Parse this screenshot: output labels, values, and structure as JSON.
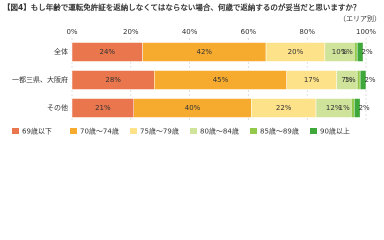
{
  "chart_data": {
    "type": "stacked-bar-horizontal",
    "title": "【図4】もし年齢で運転免許証を返納しなくてはならない場合、何歳で返納するのが妥当だと思いますか？",
    "subtitle": "（エリア別）",
    "categories": [
      "全体",
      "一都三県、大阪府",
      "その他"
    ],
    "series": [
      {
        "name": "69歳以下",
        "color": "#e9764c",
        "values": [
          24,
          28,
          21
        ],
        "value_labels": [
          "24%",
          "28%",
          "21%"
        ]
      },
      {
        "name": "70歳～74歳",
        "color": "#f6ab2e",
        "values": [
          42,
          45,
          40
        ],
        "value_labels": [
          "42%",
          "45%",
          "40%"
        ]
      },
      {
        "name": "75歳～79歳",
        "color": "#fde28a",
        "values": [
          20,
          17,
          22
        ],
        "value_labels": [
          "20%",
          "17%",
          "22%"
        ]
      },
      {
        "name": "80歳～84歳",
        "color": "#cfe39a",
        "values": [
          10,
          7,
          12
        ],
        "value_labels": [
          "10%",
          "7%",
          "12%"
        ]
      },
      {
        "name": "85歳～89歳",
        "color": "#93c94a",
        "values": [
          1,
          1,
          1
        ],
        "value_labels": [
          "1%",
          "1%",
          "1%"
        ]
      },
      {
        "name": "90歳以上",
        "color": "#3fa83a",
        "values": [
          2,
          2,
          2
        ],
        "value_labels": [
          "2%",
          "2%",
          "2%"
        ]
      }
    ],
    "xlim": [
      0,
      100
    ],
    "xticks": [
      {
        "value": 0,
        "label": "0%"
      },
      {
        "value": 20,
        "label": "20%"
      },
      {
        "value": 40,
        "label": "40%"
      },
      {
        "value": 60,
        "label": "60%"
      },
      {
        "value": 80,
        "label": "80%"
      },
      {
        "value": 100,
        "label": "100%"
      }
    ],
    "grid": true
  }
}
